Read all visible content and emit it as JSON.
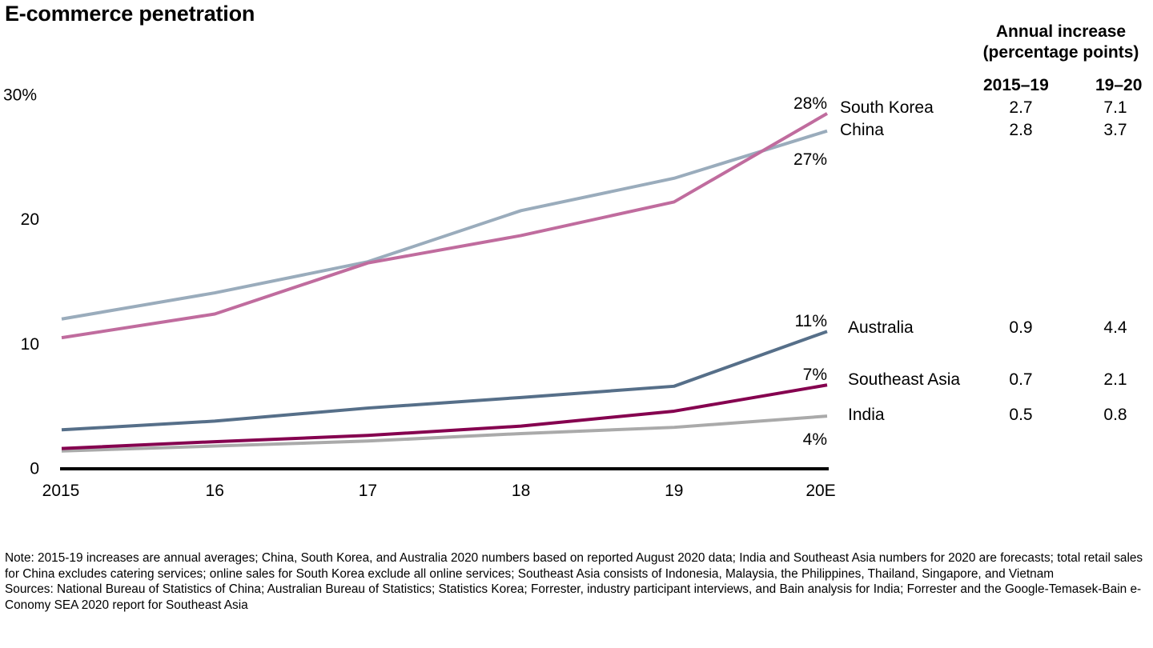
{
  "chart_data": {
    "type": "line",
    "title": "E-commerce penetration",
    "xlabel": "",
    "ylabel": "",
    "categories": [
      "2015",
      "16",
      "17",
      "18",
      "19",
      "20E"
    ],
    "ylim": [
      0,
      30
    ],
    "yticks": [
      {
        "value": 0,
        "label": "0"
      },
      {
        "value": 10,
        "label": "10"
      },
      {
        "value": 20,
        "label": "20"
      },
      {
        "value": 30,
        "label": "30%"
      }
    ],
    "grid": false,
    "series": [
      {
        "name": "South Korea",
        "color": "#C06C9E",
        "values": [
          10.4,
          12.3,
          16.4,
          18.6,
          21.3,
          28.4
        ],
        "end_label": "28%",
        "increase_2015_19": "2.7",
        "increase_19_20": "7.1"
      },
      {
        "name": "China",
        "color": "#9AACBC",
        "values": [
          11.9,
          14.0,
          16.5,
          20.6,
          23.2,
          27.0
        ],
        "end_label": "27%",
        "increase_2015_19": "2.8",
        "increase_19_20": "3.7"
      },
      {
        "name": "Australia",
        "color": "#566F89",
        "values": [
          3.0,
          3.7,
          4.75,
          5.6,
          6.5,
          10.9
        ],
        "end_label": "11%",
        "increase_2015_19": "0.9",
        "increase_19_20": "4.4"
      },
      {
        "name": "Southeast Asia",
        "color": "#85004F",
        "values": [
          1.5,
          2.05,
          2.55,
          3.3,
          4.5,
          6.6
        ],
        "end_label": "7%",
        "increase_2015_19": "0.7",
        "increase_19_20": "2.1"
      },
      {
        "name": "India",
        "color": "#AAAAAA",
        "values": [
          1.3,
          1.7,
          2.1,
          2.7,
          3.2,
          4.1
        ],
        "end_label": "4%",
        "increase_2015_19": "0.5",
        "increase_19_20": "0.8"
      }
    ],
    "axis_color": "#000000",
    "side_table": {
      "title_line1": "Annual increase",
      "title_line2": "(percentage points)",
      "col1": "2015–19",
      "col2": "19–20"
    }
  },
  "footnotes": {
    "note": "Note: 2015-19 increases are annual averages; China, South Korea, and Australia 2020 numbers based on reported August 2020 data; India and Southeast Asia numbers for 2020 are forecasts; total retail sales for China excludes catering services; online sales for South Korea exclude all online services; Southeast Asia consists of Indonesia, Malaysia, the Philippines, Thailand, Singapore, and Vietnam",
    "sources": "Sources: National Bureau of Statistics of China; Australian Bureau of Statistics; Statistics Korea; Forrester, industry participant interviews, and Bain analysis for India; Forrester and the Google-Temasek-Bain e-Conomy SEA 2020 report for Southeast Asia"
  }
}
